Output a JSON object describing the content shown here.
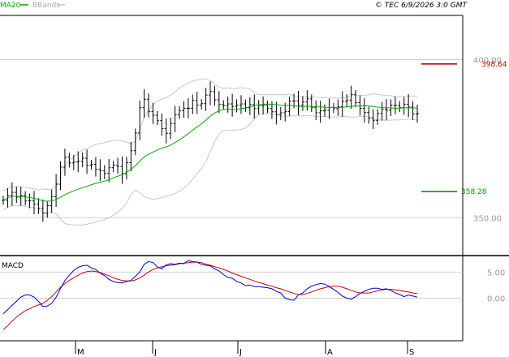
{
  "header": {
    "legend_ma20": "MA20",
    "legend_bbands": "BBands",
    "timestamp": "© TEC 6/9/2026 3:0 GMT"
  },
  "colors": {
    "price": "#000000",
    "ma20": "#00aa00",
    "bbands": "#c8c8c8",
    "resistance": "#cc0000",
    "support": "#009900",
    "macd": "#0000cc",
    "signal": "#cc0000",
    "axis_label": "#999999"
  },
  "chart_data": [
    {
      "type": "ohlc",
      "panel": "price",
      "x_labels": [
        "M",
        "J",
        "J",
        "A",
        "S"
      ],
      "y_axis": {
        "ticks": [
          350,
          400
        ],
        "tick_labels": [
          "350.00",
          "400.00"
        ],
        "ylim": [
          338,
          414
        ]
      },
      "levels": [
        {
          "label": "398.64",
          "value": 398.64
        },
        {
          "label": "358.28",
          "value": 358.28
        }
      ],
      "close_series": [
        355.5,
        357.0,
        358.0,
        356.5,
        357.0,
        355.3,
        355.3,
        354.3,
        353.0,
        351.4,
        353.8,
        356.6,
        360.6,
        366.0,
        369.1,
        367.3,
        367.6,
        367.8,
        368.8,
        366.6,
        366.9,
        365.3,
        364.8,
        364.0,
        365.8,
        366.6,
        366.2,
        363.9,
        367.4,
        371.2,
        376.8,
        384.8,
        387.5,
        383.6,
        382.4,
        380.7,
        378.2,
        376.7,
        379.8,
        382.6,
        383.9,
        384.6,
        384.6,
        387.1,
        385.6,
        386.1,
        388.8,
        389.9,
        387.3,
        385.8,
        385.5,
        386.0,
        385.2,
        385.6,
        386.0,
        384.8,
        385.8,
        384.5,
        385.4,
        385.6,
        384.5,
        383.5,
        382.7,
        383.2,
        383.6,
        386.9,
        386.9,
        385.6,
        386.6,
        387.6,
        384.8,
        383.2,
        383.8,
        384.0,
        384.9,
        384.5,
        385.1,
        386.8,
        387.2,
        389.0,
        386.4,
        384.6,
        383.3,
        381.6,
        380.8,
        383.0,
        384.3,
        384.0,
        385.6,
        385.5,
        384.8,
        385.9,
        385.0,
        382.8,
        383.0
      ]
    },
    {
      "type": "line",
      "panel": "indicator",
      "title": "MACD",
      "y_axis": {
        "ticks": [
          5,
          0
        ],
        "tick_labels": [
          "5.00",
          "0.00"
        ],
        "ylim": [
          -8,
          8
        ]
      },
      "series": [
        {
          "values": [
            -3.0,
            -2.2,
            -1.4,
            -0.6,
            0.2,
            0.6,
            0.6,
            0.2,
            -0.6,
            -1.6,
            -1.5,
            -1.0,
            0.2,
            1.8,
            3.4,
            4.4,
            5.3,
            5.9,
            6.2,
            6.3,
            5.8,
            5.5,
            4.8,
            4.3,
            3.6,
            3.2,
            3.0,
            2.9,
            3.2,
            3.4,
            4.2,
            5.0,
            6.5,
            7.0,
            6.8,
            6.0,
            5.6,
            6.4,
            6.6,
            6.5,
            6.7,
            6.6,
            7.2,
            7.0,
            6.9,
            6.5,
            6.3,
            6.2,
            5.6,
            5.2,
            4.5,
            4.0,
            3.8,
            3.2,
            2.9,
            2.4,
            2.5,
            2.2,
            2.2,
            2.1,
            2.0,
            1.8,
            1.3,
            1.0,
            0.0,
            -0.3,
            -0.4,
            0.6,
            1.0,
            1.8,
            2.3,
            2.6,
            2.8,
            2.7,
            2.2,
            1.7,
            1.1,
            0.4,
            0.0,
            -0.2,
            0.3,
            0.9,
            1.3,
            1.7,
            1.9,
            1.9,
            1.7,
            1.8,
            1.5,
            1.0,
            0.7,
            0.3,
            0.6,
            0.4,
            0.2
          ]
        },
        {
          "values": [
            -6.0,
            -5.3,
            -4.4,
            -3.6,
            -3.0,
            -2.4,
            -2.0,
            -1.6,
            -1.3,
            -1.0,
            -0.4,
            0.3,
            1.2,
            2.1,
            2.8,
            3.4,
            3.9,
            4.4,
            4.8,
            5.1,
            5.2,
            5.1,
            4.9,
            4.6,
            4.3,
            3.9,
            3.6,
            3.4,
            3.3,
            3.3,
            3.5,
            3.9,
            4.4,
            5.0,
            5.5,
            5.8,
            6.0,
            6.2,
            6.3,
            6.4,
            6.6,
            6.7,
            6.8,
            6.9,
            6.9,
            6.8,
            6.5,
            6.3,
            6.0,
            5.8,
            5.5,
            5.2,
            4.8,
            4.5,
            4.2,
            3.9,
            3.6,
            3.3,
            3.0,
            2.8,
            2.5,
            2.3,
            2.0,
            1.8,
            1.5,
            1.2,
            0.9,
            0.7,
            0.7,
            0.9,
            1.2,
            1.5,
            1.8,
            2.0,
            2.2,
            2.3,
            2.3,
            2.1,
            1.8,
            1.5,
            1.2,
            1.0,
            1.0,
            1.0,
            1.2,
            1.4,
            1.6,
            1.7,
            1.7,
            1.6,
            1.5,
            1.3,
            1.2,
            1.0,
            0.9
          ]
        }
      ]
    }
  ]
}
